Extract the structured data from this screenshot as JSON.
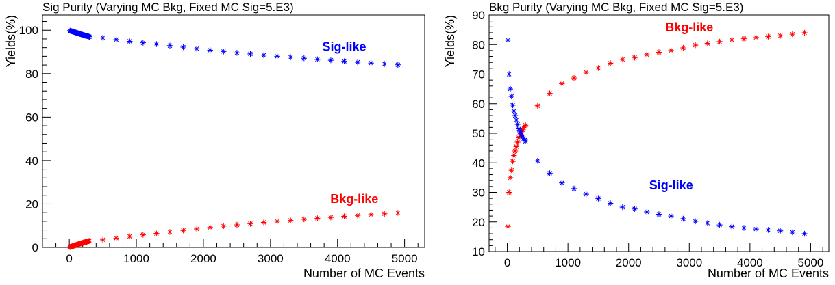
{
  "chart_data": [
    {
      "type": "scatter",
      "title": "Sig Purity (Varying MC Bkg, Fixed MC Sig=5.E3)",
      "xlabel": "Number of MC Events",
      "ylabel": "Yields(%)",
      "xlim": [
        -400,
        5300
      ],
      "ylim": [
        0,
        107
      ],
      "xticks": [
        0,
        1000,
        2000,
        3000,
        4000,
        5000
      ],
      "yticks": [
        0,
        20,
        40,
        60,
        80,
        100
      ],
      "grid": false,
      "series": [
        {
          "name": "Sig-like",
          "color": "#0000ff",
          "x": [
            10,
            20,
            30,
            40,
            50,
            60,
            70,
            80,
            90,
            100,
            110,
            120,
            130,
            140,
            150,
            160,
            170,
            180,
            190,
            200,
            210,
            220,
            230,
            240,
            250,
            260,
            270,
            280,
            290,
            300,
            500,
            700,
            900,
            1100,
            1300,
            1500,
            1700,
            1900,
            2100,
            2300,
            2500,
            2700,
            2900,
            3100,
            3300,
            3500,
            3700,
            3900,
            4100,
            4300,
            4500,
            4700,
            4900
          ],
          "y": [
            99.8,
            99.7,
            99.6,
            99.5,
            99.4,
            99.3,
            99.2,
            99.1,
            99.0,
            98.9,
            98.8,
            98.7,
            98.6,
            98.5,
            98.4,
            98.3,
            98.2,
            98.1,
            98.0,
            97.9,
            97.8,
            97.7,
            97.6,
            97.5,
            97.5,
            97.4,
            97.3,
            97.2,
            97.1,
            97.0,
            96.5,
            95.7,
            94.9,
            94.2,
            93.6,
            92.9,
            92.2,
            91.5,
            90.8,
            90.2,
            89.6,
            89.1,
            88.5,
            88.0,
            87.6,
            87.1,
            86.6,
            86.2,
            85.7,
            85.3,
            84.9,
            84.5,
            84.1
          ]
        },
        {
          "name": "Bkg-like",
          "color": "#ff0000",
          "x": [
            10,
            20,
            30,
            40,
            50,
            60,
            70,
            80,
            90,
            100,
            110,
            120,
            130,
            140,
            150,
            160,
            170,
            180,
            190,
            200,
            210,
            220,
            230,
            240,
            250,
            260,
            270,
            280,
            290,
            300,
            500,
            700,
            900,
            1100,
            1300,
            1500,
            1700,
            1900,
            2100,
            2300,
            2500,
            2700,
            2900,
            3100,
            3300,
            3500,
            3700,
            3900,
            4100,
            4300,
            4500,
            4700,
            4900
          ],
          "y": [
            0.2,
            0.3,
            0.4,
            0.5,
            0.6,
            0.7,
            0.8,
            0.9,
            1.0,
            1.1,
            1.2,
            1.3,
            1.4,
            1.5,
            1.6,
            1.7,
            1.8,
            1.9,
            2.0,
            2.1,
            2.2,
            2.3,
            2.4,
            2.5,
            2.5,
            2.6,
            2.7,
            2.8,
            2.9,
            3.0,
            3.5,
            4.3,
            5.1,
            5.8,
            6.4,
            7.1,
            7.8,
            8.5,
            9.2,
            9.8,
            10.4,
            10.9,
            11.5,
            12.0,
            12.4,
            12.9,
            13.4,
            13.8,
            14.3,
            14.7,
            15.1,
            15.5,
            15.9
          ]
        }
      ],
      "annotations": [
        {
          "text": "Sig-like",
          "x": 4100,
          "y": 90.5,
          "color": "#0000ff"
        },
        {
          "text": "Bkg-like",
          "x": 4250,
          "y": 20.5,
          "color": "#ff0000"
        }
      ]
    },
    {
      "type": "scatter",
      "title": "Bkg Purity (Varying MC Bkg, Fixed MC Sig=5.E3)",
      "xlabel": "Number of MC Events",
      "ylabel": "Yields(%)",
      "xlim": [
        -300,
        5300
      ],
      "ylim": [
        10,
        90
      ],
      "xticks": [
        0,
        1000,
        2000,
        3000,
        4000,
        5000
      ],
      "yticks": [
        10,
        20,
        30,
        40,
        50,
        60,
        70,
        80,
        90
      ],
      "grid": false,
      "series": [
        {
          "name": "Bkg-like",
          "color": "#ff0000",
          "x": [
            10,
            30,
            50,
            70,
            90,
            110,
            130,
            150,
            170,
            190,
            210,
            230,
            250,
            270,
            290,
            300,
            500,
            700,
            900,
            1100,
            1300,
            1500,
            1700,
            1900,
            2100,
            2300,
            2500,
            2700,
            2900,
            3100,
            3300,
            3500,
            3700,
            3900,
            4100,
            4300,
            4500,
            4700,
            4900
          ],
          "y": [
            18.5,
            30.0,
            35.0,
            37.5,
            40.5,
            42.5,
            44.0,
            45.5,
            47.0,
            48.5,
            49.5,
            50.5,
            51.2,
            51.8,
            52.3,
            52.7,
            59.3,
            63.5,
            66.8,
            68.7,
            70.6,
            72.1,
            73.7,
            75.0,
            75.6,
            76.6,
            77.4,
            78.0,
            78.9,
            79.8,
            80.4,
            81.0,
            81.6,
            82.0,
            82.4,
            82.7,
            83.0,
            83.5,
            84.0
          ]
        },
        {
          "name": "Sig-like",
          "color": "#0000ff",
          "x": [
            10,
            30,
            50,
            70,
            90,
            110,
            130,
            150,
            170,
            190,
            210,
            230,
            250,
            270,
            290,
            300,
            500,
            700,
            900,
            1100,
            1300,
            1500,
            1700,
            1900,
            2100,
            2300,
            2500,
            2700,
            2900,
            3100,
            3300,
            3500,
            3700,
            3900,
            4100,
            4300,
            4500,
            4700,
            4900
          ],
          "y": [
            81.5,
            70.0,
            65.0,
            62.5,
            59.5,
            57.5,
            56.0,
            54.5,
            53.0,
            51.5,
            50.5,
            49.5,
            48.8,
            48.2,
            47.7,
            47.3,
            40.7,
            36.5,
            33.2,
            31.3,
            29.4,
            27.9,
            26.3,
            25.0,
            24.4,
            23.4,
            22.6,
            22.0,
            21.1,
            20.2,
            19.6,
            19.0,
            18.4,
            18.0,
            17.6,
            17.3,
            17.0,
            16.5,
            16.0
          ]
        }
      ],
      "annotations": [
        {
          "text": "Bkg-like",
          "x": 3000,
          "y": 84.5,
          "color": "#ff0000"
        },
        {
          "text": "Sig-like",
          "x": 2700,
          "y": 31.0,
          "color": "#0000ff"
        }
      ]
    }
  ]
}
